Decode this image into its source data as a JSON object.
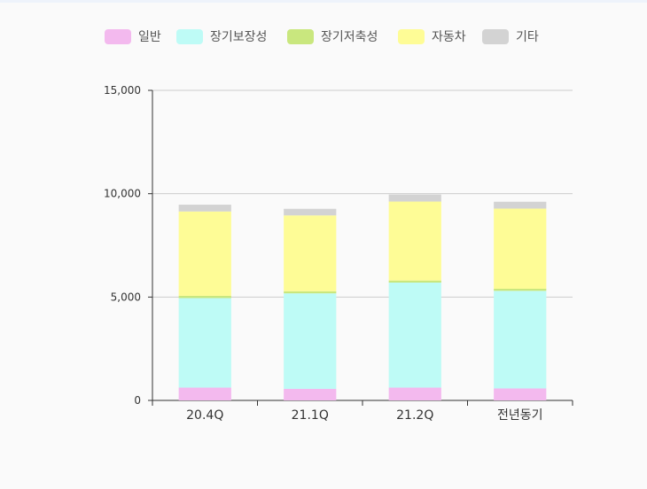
{
  "chart_data": {
    "type": "bar",
    "stacked": true,
    "categories": [
      "20.4Q",
      "21.1Q",
      "21.2Q",
      "전년동기"
    ],
    "series": [
      {
        "name": "일반",
        "color": "#f3b9ee",
        "values": [
          620,
          560,
          620,
          580
        ]
      },
      {
        "name": "장기보장성",
        "color": "#befbf6",
        "values": [
          4330,
          4620,
          5080,
          4720
        ]
      },
      {
        "name": "장기저축성",
        "color": "#c9e77e",
        "values": [
          110,
          100,
          100,
          100
        ]
      },
      {
        "name": "자동차",
        "color": "#fefc96",
        "values": [
          4080,
          3670,
          3820,
          3880
        ]
      },
      {
        "name": "기타",
        "color": "#d3d3d3",
        "values": [
          330,
          320,
          340,
          330
        ]
      }
    ],
    "yticks": [
      "0",
      "5,000",
      "10,000",
      "15,000"
    ],
    "ylim": [
      0,
      15000
    ],
    "grid": true,
    "legend_position": "top",
    "xlabel": "",
    "ylabel": ""
  }
}
